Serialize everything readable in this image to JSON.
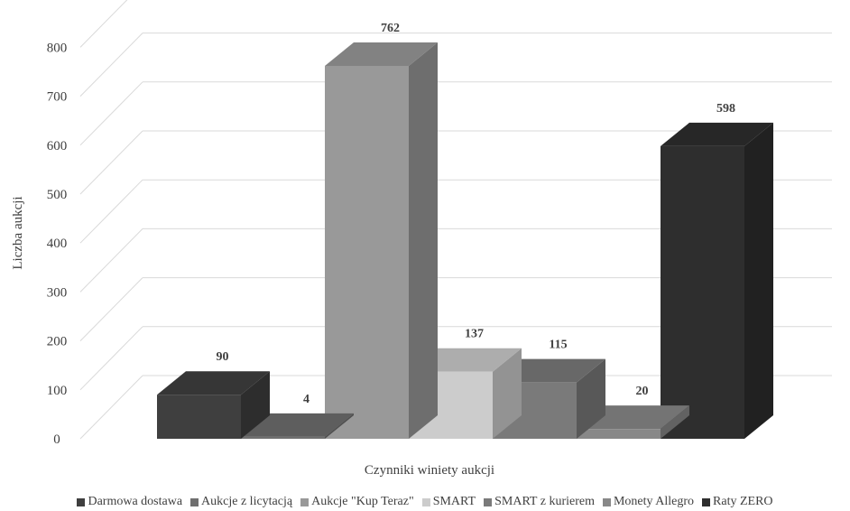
{
  "chart_data": {
    "type": "bar",
    "three_d": true,
    "categories": [
      "Darmowa dostawa",
      "Aukcje z licytacją",
      "Aukcje \"Kup Teraz\"",
      "SMART",
      "SMART z kurierem",
      "Monety Allegro",
      "Raty ZERO"
    ],
    "values": [
      90,
      4,
      762,
      137,
      115,
      20,
      598
    ],
    "data_labels": [
      "90",
      "4",
      "762",
      "137",
      "115",
      "20",
      "598"
    ],
    "colors": [
      "#3f3f3f",
      "#6f6f6f",
      "#999999",
      "#cccccc",
      "#7a7a7a",
      "#888888",
      "#2e2e2e"
    ],
    "ylabel": "Liczba aukcji",
    "xlabel": "Czynniki winiety aukcji",
    "ylim": [
      0,
      800
    ],
    "yticks": [
      "0",
      "100",
      "200",
      "300",
      "400",
      "500",
      "600",
      "700",
      "800"
    ],
    "grid": true,
    "legend_position": "bottom"
  }
}
